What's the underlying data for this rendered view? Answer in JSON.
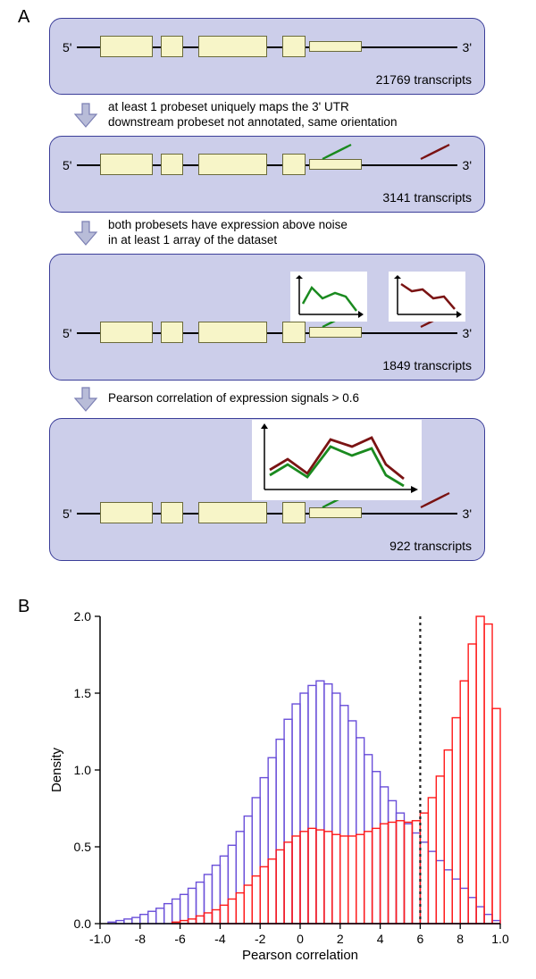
{
  "labels": {
    "panelA": "A",
    "panelB": "B",
    "five_prime": "5'",
    "three_prime": "3'",
    "x_axis": "Pearson correlation"
  },
  "colors": {
    "box_bg": "#ccceea",
    "box_border": "#3b3e99",
    "exon_fill": "#f7f5c8",
    "exon_border": "#6a6a3a",
    "probe_green": "#1a8a1f",
    "probe_red": "#7a1313",
    "arrow_fill": "#b8bcd8",
    "arrow_border": "#7b7fb3",
    "hist_purple": "#6a4fd9",
    "hist_red": "#ff1a1a",
    "axis": "#000000",
    "threshold": "#222222"
  },
  "stages": [
    {
      "count": "21769 transcripts",
      "caption": ""
    },
    {
      "count": "3141 transcripts",
      "caption": "at least 1 probeset uniquely maps the 3' UTR\ndownstream probeset not annotated, same orientation"
    },
    {
      "count": "1849 transcripts",
      "caption": "both probesets have expression above noise\nin at least 1 array of the dataset"
    },
    {
      "count": "922 transcripts",
      "caption": "Pearson correlation of expression signals > 0.6"
    }
  ],
  "exons": [
    {
      "left_pct": 6,
      "width_pct": 14
    },
    {
      "left_pct": 22,
      "width_pct": 6
    },
    {
      "left_pct": 32,
      "width_pct": 18
    },
    {
      "left_pct": 54,
      "width_pct": 6
    },
    {
      "left_pct": 61,
      "width_pct": 14,
      "thin": true
    }
  ],
  "histogram": {
    "x_min": -1.0,
    "x_max": 1.0,
    "y_min": 0,
    "y_max": 2.0,
    "y_ticks": [
      0,
      0.5,
      1.0,
      1.5,
      2.0
    ],
    "x_ticks": [
      -1,
      -0.8,
      -0.6,
      -0.4,
      -0.2,
      0,
      0.2,
      0.4,
      0.6,
      0.8,
      1
    ],
    "threshold": 0.6,
    "y_label": "Density",
    "bin_width": 0.04,
    "purple": [
      0.0,
      0.01,
      0.02,
      0.03,
      0.04,
      0.06,
      0.08,
      0.1,
      0.13,
      0.16,
      0.19,
      0.23,
      0.27,
      0.32,
      0.38,
      0.44,
      0.51,
      0.6,
      0.7,
      0.82,
      0.95,
      1.08,
      1.2,
      1.33,
      1.43,
      1.5,
      1.55,
      1.58,
      1.56,
      1.5,
      1.42,
      1.32,
      1.21,
      1.1,
      0.99,
      0.89,
      0.8,
      0.72,
      0.65,
      0.59,
      0.53,
      0.47,
      0.41,
      0.35,
      0.29,
      0.23,
      0.17,
      0.11,
      0.06,
      0.02
    ],
    "red": [
      0.0,
      0.0,
      0.0,
      0.0,
      0.0,
      0.0,
      0.0,
      0.0,
      0.0,
      0.01,
      0.02,
      0.03,
      0.05,
      0.07,
      0.09,
      0.12,
      0.16,
      0.2,
      0.25,
      0.31,
      0.37,
      0.42,
      0.48,
      0.53,
      0.57,
      0.6,
      0.62,
      0.61,
      0.6,
      0.58,
      0.57,
      0.57,
      0.58,
      0.6,
      0.62,
      0.65,
      0.66,
      0.67,
      0.66,
      0.67,
      0.72,
      0.82,
      0.96,
      1.13,
      1.34,
      1.58,
      1.82,
      2.0,
      1.95,
      1.4
    ]
  },
  "typography": {
    "panel_label_pt": 20,
    "body_pt": 14,
    "caption_pt": 13.5,
    "axis_pt": 14
  }
}
